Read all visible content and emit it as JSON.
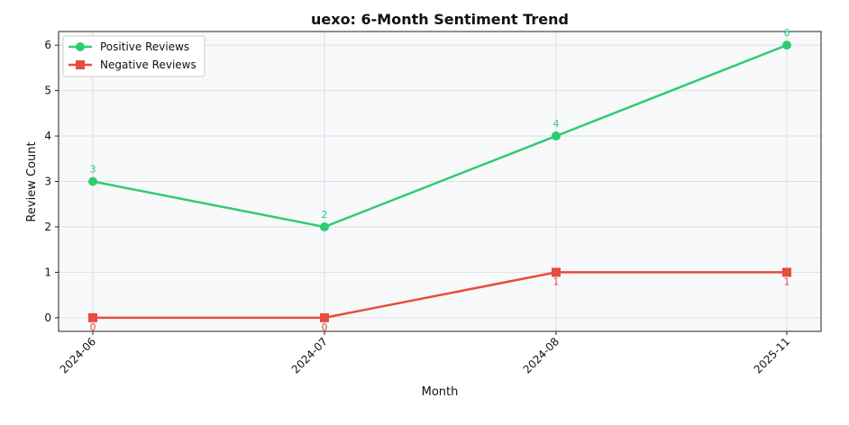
{
  "chart_data": {
    "type": "line",
    "title": "uexo: 6-Month Sentiment Trend",
    "xlabel": "Month",
    "ylabel": "Review Count",
    "categories": [
      "2024-06",
      "2024-07",
      "2024-08",
      "2025-11"
    ],
    "ylim": [
      -0.3,
      6.3
    ],
    "yticks": [
      0,
      1,
      2,
      3,
      4,
      5,
      6
    ],
    "grid": true,
    "legend_position": "top-left",
    "series": [
      {
        "name": "Positive Reviews",
        "values": [
          3,
          2,
          4,
          6
        ],
        "color": "#2ecc71",
        "marker": "circle",
        "labels": [
          "3",
          "2",
          "4",
          "6"
        ]
      },
      {
        "name": "Negative Reviews",
        "values": [
          0,
          0,
          1,
          1
        ],
        "color": "#e74c3c",
        "marker": "square",
        "labels": [
          "0",
          "0",
          "1",
          "1"
        ]
      }
    ]
  }
}
